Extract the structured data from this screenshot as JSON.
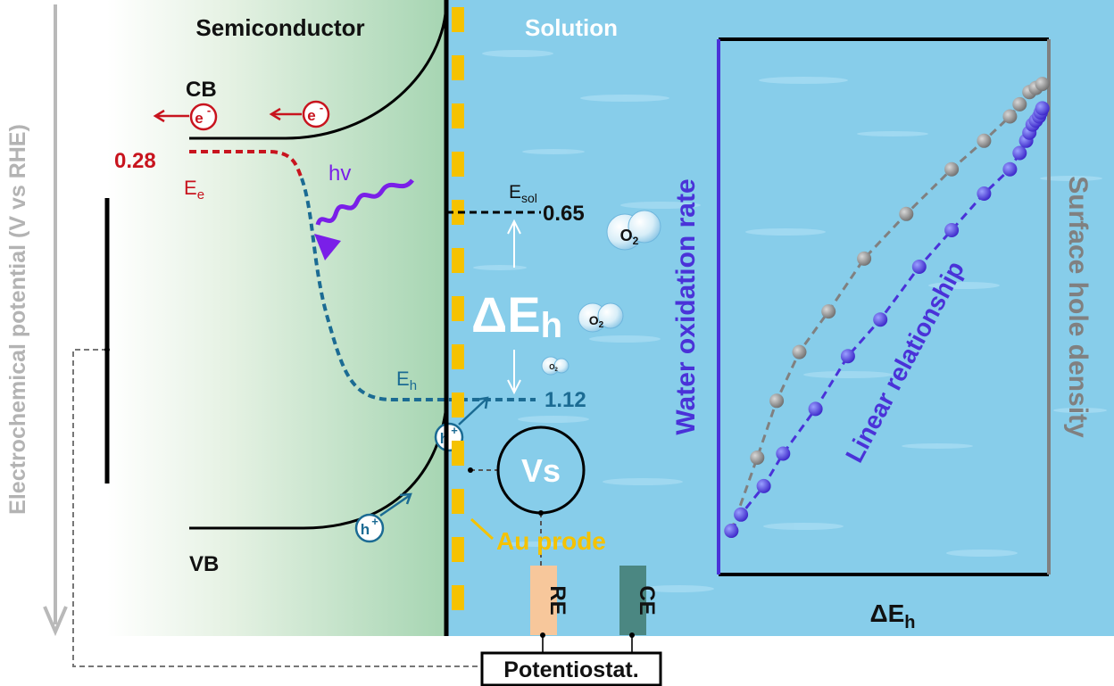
{
  "labels": {
    "semiconductor": "Semiconductor",
    "solution": "Solution",
    "cb": "CB",
    "vb": "VB",
    "electron": "e",
    "electron_sup": "-",
    "hole": "h",
    "hole_sup": "+",
    "value_028": "0.28",
    "ee_main": "E",
    "ee_sub": "e",
    "hv": "hv",
    "esol_main": "E",
    "esol_sub": "sol",
    "value_065": "0.65",
    "delta_eh_main": "ΔE",
    "delta_eh_sub": "h",
    "eh_main": "E",
    "eh_sub": "h",
    "value_112": "1.12",
    "o2_main": "O",
    "o2_sub": "2",
    "vs": "Vs",
    "au_probe": "Au prode",
    "re": "RE",
    "ce": "CE",
    "potentiostat": "Potentiostat.",
    "y_axis": "Electrochemical potential (V vs RHE)"
  },
  "inset": {
    "left_axis_label": "Water oxidation rate",
    "right_axis_label": "Surface hole density",
    "x_axis_main": "ΔE",
    "x_axis_sub": "h",
    "trend_label": "Linear relationship"
  },
  "colors": {
    "electron_red": "#c8141e",
    "hole_blue": "#1b6b93",
    "photon_purple": "#7a1fe8",
    "series_purple": "#4a32d8",
    "series_gray": "#808080",
    "gold": "#f5c200",
    "solution_blue": "#87cdea"
  },
  "chart_data": {
    "type": "scatter",
    "xlabel": "ΔEh",
    "ylabel": "Water oxidation rate",
    "y2label": "Surface hole density",
    "series": [
      {
        "name": "Water oxidation rate",
        "x": [
          0.02,
          0.05,
          0.12,
          0.18,
          0.28,
          0.38,
          0.48,
          0.6,
          0.7,
          0.8,
          0.88,
          0.91,
          0.93,
          0.94,
          0.95,
          0.96,
          0.97,
          0.975,
          0.98
        ],
        "y": [
          0.09,
          0.13,
          0.2,
          0.28,
          0.39,
          0.52,
          0.61,
          0.74,
          0.83,
          0.92,
          0.98,
          1.02,
          1.05,
          1.07,
          1.09,
          1.1,
          1.11,
          1.12,
          1.13
        ]
      },
      {
        "name": "Surface hole density",
        "x": [
          0.02,
          0.1,
          0.16,
          0.23,
          0.32,
          0.43,
          0.56,
          0.7,
          0.8,
          0.88,
          0.91,
          0.94,
          0.96,
          0.98
        ],
        "y": [
          0.09,
          0.27,
          0.41,
          0.53,
          0.63,
          0.76,
          0.87,
          0.98,
          1.05,
          1.11,
          1.14,
          1.17,
          1.18,
          1.19
        ]
      }
    ]
  }
}
